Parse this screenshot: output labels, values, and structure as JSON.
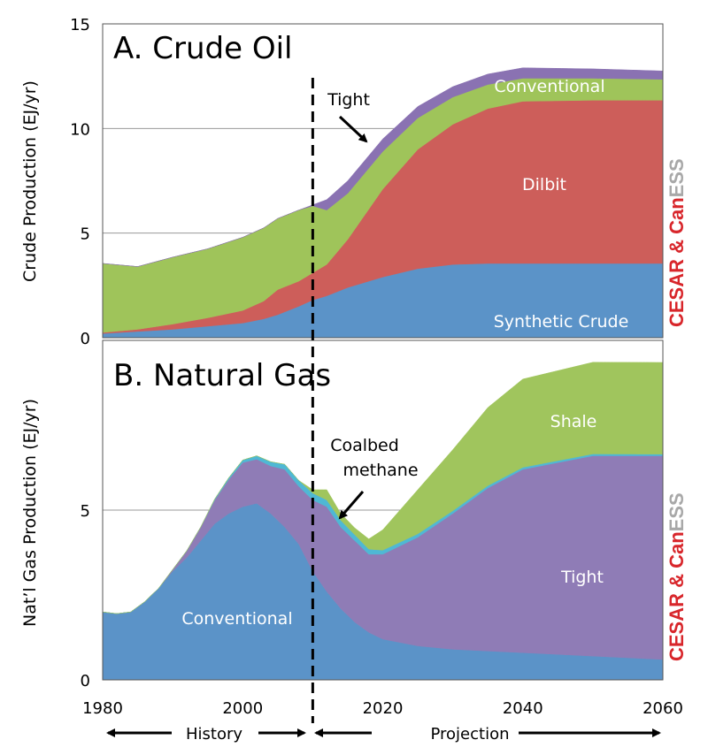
{
  "chart_data": [
    {
      "type": "area",
      "stacked": true,
      "title": "A. Crude Oil",
      "ylabel": "Crude Production  (EJ/yr)",
      "xlim": [
        1980,
        2060
      ],
      "ylim": [
        0,
        15
      ],
      "yticks": [
        "0",
        "5",
        "10",
        "15"
      ],
      "grid": "horizontal",
      "projection_start": 2010,
      "series": [
        {
          "name": "Synthetic Crude",
          "color": "#5b93c8",
          "x": [
            1980,
            1985,
            1990,
            1995,
            2000,
            2003,
            2005,
            2008,
            2010,
            2012,
            2015,
            2020,
            2025,
            2030,
            2035,
            2040,
            2050,
            2060
          ],
          "values": [
            0.2,
            0.3,
            0.4,
            0.55,
            0.7,
            0.9,
            1.1,
            1.5,
            1.8,
            2.0,
            2.4,
            2.9,
            3.3,
            3.5,
            3.55,
            3.55,
            3.55,
            3.55
          ]
        },
        {
          "name": "Dilbit",
          "color": "#cd5e5a",
          "x": [
            1980,
            1985,
            1990,
            1995,
            2000,
            2003,
            2005,
            2008,
            2010,
            2012,
            2015,
            2020,
            2025,
            2030,
            2035,
            2040,
            2050,
            2060
          ],
          "values": [
            0.05,
            0.1,
            0.25,
            0.4,
            0.6,
            0.85,
            1.2,
            1.2,
            1.3,
            1.5,
            2.3,
            4.2,
            5.7,
            6.7,
            7.4,
            7.75,
            7.8,
            7.8
          ]
        },
        {
          "name": "Conventional",
          "color": "#9fc45a",
          "x": [
            1980,
            1985,
            1990,
            1995,
            2000,
            2003,
            2005,
            2008,
            2010,
            2012,
            2015,
            2020,
            2025,
            2030,
            2035,
            2040,
            2050,
            2060
          ],
          "values": [
            3.3,
            3.0,
            3.2,
            3.3,
            3.5,
            3.5,
            3.4,
            3.4,
            3.2,
            2.6,
            2.2,
            1.8,
            1.5,
            1.3,
            1.15,
            1.1,
            1.05,
            1.0
          ]
        },
        {
          "name": "Tight",
          "color": "#8a72b2",
          "x": [
            1980,
            1985,
            1990,
            1995,
            2000,
            2003,
            2005,
            2008,
            2010,
            2012,
            2015,
            2020,
            2025,
            2030,
            2035,
            2040,
            2050,
            2060
          ],
          "values": [
            0,
            0,
            0,
            0,
            0,
            0,
            0,
            0,
            0.05,
            0.5,
            0.6,
            0.6,
            0.55,
            0.5,
            0.5,
            0.5,
            0.45,
            0.4
          ]
        }
      ]
    },
    {
      "type": "area",
      "stacked": true,
      "title": "B. Natural Gas",
      "ylabel": "Nat’l Gas Production  (EJ/yr)",
      "xlabel": "",
      "xlim": [
        1980,
        2060
      ],
      "ylim": [
        0,
        10
      ],
      "yticks": [
        "0",
        "5"
      ],
      "xticks": [
        "1980",
        "2000",
        "2020",
        "2040",
        "2060"
      ],
      "grid": "horizontal",
      "projection_start": 2010,
      "series": [
        {
          "name": "Conventional",
          "color": "#5b93c8",
          "x": [
            1980,
            1982,
            1984,
            1986,
            1988,
            1990,
            1992,
            1994,
            1996,
            1998,
            2000,
            2002,
            2004,
            2006,
            2008,
            2010,
            2012,
            2014,
            2016,
            2018,
            2020,
            2025,
            2030,
            2035,
            2040,
            2050,
            2060
          ],
          "values": [
            2.0,
            1.95,
            2.0,
            2.3,
            2.7,
            3.2,
            3.6,
            4.1,
            4.6,
            4.9,
            5.1,
            5.2,
            4.9,
            4.5,
            4.0,
            3.2,
            2.6,
            2.1,
            1.7,
            1.4,
            1.2,
            1.0,
            0.9,
            0.85,
            0.8,
            0.7,
            0.6
          ]
        },
        {
          "name": "Tight",
          "color": "#8f7cb6",
          "x": [
            1980,
            1982,
            1984,
            1986,
            1988,
            1990,
            1992,
            1994,
            1996,
            1998,
            2000,
            2002,
            2004,
            2006,
            2008,
            2010,
            2012,
            2014,
            2016,
            2018,
            2020,
            2025,
            2030,
            2035,
            2040,
            2050,
            2060
          ],
          "values": [
            0,
            0,
            0,
            0,
            0,
            0.05,
            0.2,
            0.4,
            0.7,
            1.0,
            1.3,
            1.3,
            1.4,
            1.7,
            1.7,
            2.1,
            2.5,
            2.4,
            2.4,
            2.3,
            2.5,
            3.2,
            4.0,
            4.8,
            5.4,
            5.9,
            6.0
          ]
        },
        {
          "name": "Coalbed methane",
          "color": "#4fb8d4",
          "x": [
            1980,
            1994,
            1998,
            2002,
            2006,
            2010,
            2014,
            2018,
            2020,
            2030,
            2040,
            2060
          ],
          "values": [
            0,
            0,
            0.05,
            0.1,
            0.15,
            0.2,
            0.2,
            0.15,
            0.12,
            0.08,
            0.06,
            0.05
          ]
        },
        {
          "name": "Shale",
          "color": "#a0c55d",
          "x": [
            1980,
            2008,
            2010,
            2012,
            2014,
            2016,
            2018,
            2020,
            2025,
            2030,
            2035,
            2040,
            2050,
            2060
          ],
          "values": [
            0,
            0,
            0.1,
            0.3,
            0.2,
            0.2,
            0.3,
            0.6,
            1.3,
            1.8,
            2.3,
            2.6,
            2.7,
            2.7
          ]
        }
      ]
    }
  ],
  "labels": {
    "crude": {
      "synthetic": "Synthetic Crude",
      "dilbit": "Dilbit",
      "conventional": "Conventional",
      "tight": "Tight"
    },
    "gas": {
      "conventional": "Conventional",
      "tight": "Tight",
      "shale": "Shale",
      "coalbed_1": "Coalbed",
      "coalbed_2": "methane"
    }
  },
  "timeline": {
    "history": "History",
    "projection": "Projection"
  },
  "watermark": {
    "red": "CESAR & ",
    "brand_red": "Can",
    "brand_grey": "ESS"
  }
}
